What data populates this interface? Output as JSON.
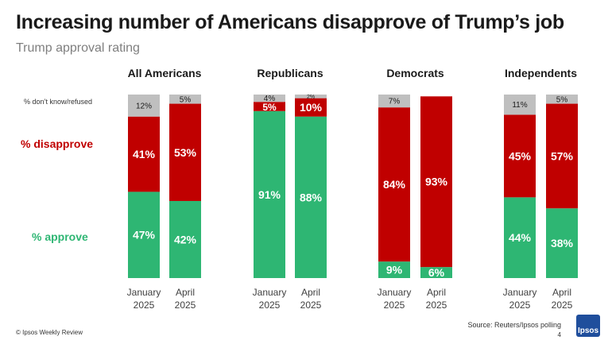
{
  "header": {
    "title": "Increasing number of Americans disapprove of Trump’s job",
    "subtitle": "Trump approval rating"
  },
  "footer": {
    "copyright": "© Ipsos Weekly Review",
    "source": "Source: Reuters/Ipsos polling",
    "page_number": "4",
    "logo_text": "Ipsos"
  },
  "colors": {
    "approve": "#2eb673",
    "disapprove": "#c00000",
    "dont_know": "#bfbfbf",
    "approve_label": "#2eb673",
    "disapprove_label": "#c00000"
  },
  "chart_data": {
    "type": "bar",
    "stacked": true,
    "row_labels": {
      "dont_know": "% don’t know/refused",
      "disapprove": "% disapprove",
      "approve": "% approve"
    },
    "groups": [
      {
        "name": "All Americans",
        "bars": [
          {
            "period": [
              "January",
              "2025"
            ],
            "approve": 47,
            "disapprove": 41,
            "dont_know": 12,
            "approve_label": "47%",
            "disapprove_label": "41%",
            "dont_know_label": "12%"
          },
          {
            "period": [
              "April",
              "2025"
            ],
            "approve": 42,
            "disapprove": 53,
            "dont_know": 5,
            "approve_label": "42%",
            "disapprove_label": "53%",
            "dont_know_label": "5%"
          }
        ]
      },
      {
        "name": "Republicans",
        "bars": [
          {
            "period": [
              "January",
              "2025"
            ],
            "approve": 91,
            "disapprove": 5,
            "dont_know": 4,
            "approve_label": "91%",
            "disapprove_label": "5%",
            "dont_know_label": "4%"
          },
          {
            "period": [
              "April",
              "2025"
            ],
            "approve": 88,
            "disapprove": 10,
            "dont_know": 2,
            "approve_label": "88%",
            "disapprove_label": "10%",
            "dont_know_label": "2%"
          }
        ]
      },
      {
        "name": "Democrats",
        "bars": [
          {
            "period": [
              "January",
              "2025"
            ],
            "approve": 9,
            "disapprove": 84,
            "dont_know": 7,
            "approve_label": "9%",
            "disapprove_label": "84%",
            "dont_know_label": "7%"
          },
          {
            "period": [
              "April",
              "2025"
            ],
            "approve": 6,
            "disapprove": 93,
            "dont_know": 0,
            "approve_label": "6%",
            "disapprove_label": "93%",
            "dont_know_label": ""
          }
        ]
      },
      {
        "name": "Independents",
        "bars": [
          {
            "period": [
              "January",
              "2025"
            ],
            "approve": 44,
            "disapprove": 45,
            "dont_know": 11,
            "approve_label": "44%",
            "disapprove_label": "45%",
            "dont_know_label": "11%"
          },
          {
            "period": [
              "April",
              "2025"
            ],
            "approve": 38,
            "disapprove": 57,
            "dont_know": 5,
            "approve_label": "38%",
            "disapprove_label": "57%",
            "dont_know_label": "5%"
          }
        ]
      }
    ],
    "ylim": [
      0,
      100
    ]
  }
}
